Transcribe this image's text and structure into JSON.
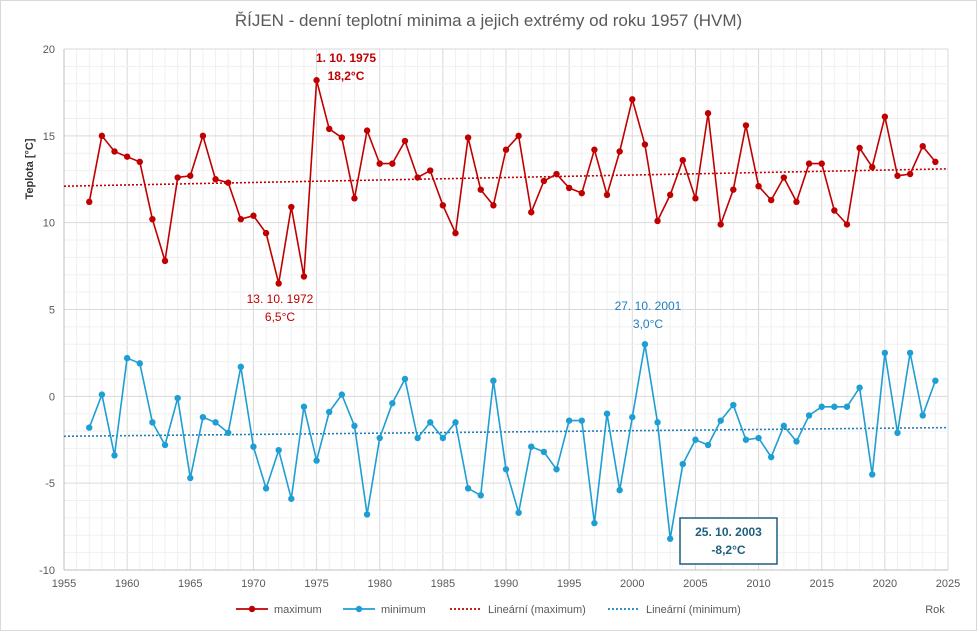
{
  "chart_data": {
    "type": "line",
    "title": "ŘÍJEN - denní teplotní minima a jejich extrémy od roku 1957 (HVM)",
    "ylabel": "Teplota [°C]",
    "xlabel": "Rok",
    "xlim": [
      1955,
      2025
    ],
    "ylim": [
      -10,
      20
    ],
    "xticks": [
      "1955",
      "1960",
      "1965",
      "1970",
      "1975",
      "1980",
      "1985",
      "1990",
      "1995",
      "2000",
      "2005",
      "2010",
      "2015",
      "2020",
      "2025"
    ],
    "yticks": [
      "-10",
      "-5",
      "0",
      "5",
      "10",
      "15",
      "20"
    ],
    "grid": true,
    "legend_position": "bottom",
    "x": [
      1957,
      1958,
      1959,
      1960,
      1961,
      1962,
      1963,
      1964,
      1965,
      1966,
      1967,
      1968,
      1969,
      1970,
      1971,
      1972,
      1973,
      1974,
      1975,
      1976,
      1977,
      1978,
      1979,
      1980,
      1981,
      1982,
      1983,
      1984,
      1985,
      1986,
      1987,
      1988,
      1989,
      1990,
      1991,
      1992,
      1993,
      1994,
      1995,
      1996,
      1997,
      1998,
      1999,
      2000,
      2001,
      2002,
      2003,
      2004,
      2005,
      2006,
      2007,
      2008,
      2009,
      2010,
      2011,
      2012,
      2013,
      2014,
      2015,
      2016,
      2017,
      2018,
      2019,
      2020,
      2021,
      2022,
      2023,
      2024
    ],
    "series": [
      {
        "name": "maximum",
        "color": "#c00000",
        "values": [
          11.2,
          15.0,
          14.1,
          13.8,
          13.5,
          10.2,
          7.8,
          12.6,
          12.7,
          15.0,
          12.5,
          12.3,
          10.2,
          10.4,
          9.4,
          6.5,
          10.9,
          6.9,
          18.2,
          15.4,
          14.9,
          11.4,
          15.3,
          13.4,
          13.4,
          14.7,
          12.6,
          13.0,
          11.0,
          9.4,
          14.9,
          11.9,
          11.0,
          14.2,
          15.0,
          10.6,
          12.4,
          12.8,
          12.0,
          11.7,
          14.2,
          11.6,
          14.1,
          17.1,
          14.5,
          10.1,
          11.6,
          13.6,
          11.4,
          16.3,
          9.9,
          11.9,
          15.6,
          12.1,
          11.3,
          12.6,
          11.2,
          13.4,
          13.4,
          10.7,
          9.9,
          14.3,
          13.2,
          16.1,
          12.7,
          12.8,
          14.4,
          13.5
        ]
      },
      {
        "name": "minimum",
        "color": "#1e9ed3",
        "values": [
          -1.8,
          0.1,
          -3.4,
          2.2,
          1.9,
          -1.5,
          -2.8,
          -0.1,
          -4.7,
          -1.2,
          -1.5,
          -2.1,
          1.7,
          -2.9,
          -5.3,
          -3.1,
          -5.9,
          -0.6,
          -3.7,
          -0.9,
          0.1,
          -1.7,
          -6.8,
          -2.4,
          -0.4,
          1.0,
          -2.4,
          -1.5,
          -2.4,
          -1.5,
          -5.3,
          -5.7,
          0.9,
          -4.2,
          -6.7,
          -2.9,
          -3.2,
          -4.2,
          -1.4,
          -1.4,
          -7.3,
          -1.0,
          -5.4,
          -1.2,
          3.0,
          -1.5,
          -8.2,
          -3.9,
          -2.5,
          -2.8,
          -1.4,
          -0.5,
          -2.5,
          -2.4,
          -3.5,
          -1.7,
          -2.6,
          -1.1,
          -0.6,
          -0.6,
          -0.6,
          0.5,
          -4.5,
          2.5,
          -2.1,
          2.5,
          -1.1,
          0.9
        ]
      },
      {
        "name": "Lineární (maximum)",
        "type": "trendline",
        "color": "#c00000",
        "start": [
          1955,
          12.1
        ],
        "end": [
          2025,
          13.1
        ]
      },
      {
        "name": "Lineární (minimum)",
        "type": "trendline",
        "color": "#1e7fc0",
        "start": [
          1955,
          -2.3
        ],
        "end": [
          2025,
          -1.8
        ]
      }
    ],
    "annotations": [
      {
        "id": "max-high",
        "date": "1. 10. 1975",
        "value": "18,2°C",
        "color": "#c00000",
        "bold": true
      },
      {
        "id": "max-low",
        "date": "13. 10. 1972",
        "value": "6,5°C",
        "color": "#c00000",
        "bold": false
      },
      {
        "id": "min-high",
        "date": "27. 10. 2001",
        "value": "3,0°C",
        "color": "#1e7fc0",
        "bold": false
      },
      {
        "id": "min-low",
        "date": "25. 10. 2003",
        "value": "-8,2°C",
        "color": "#1f5f7f",
        "bold": true,
        "boxed": true
      }
    ]
  }
}
